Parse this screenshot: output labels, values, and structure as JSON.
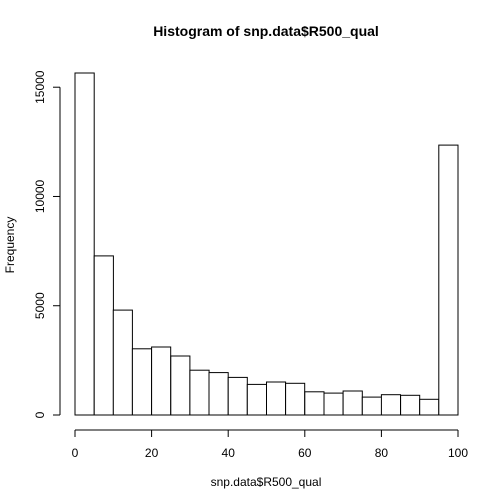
{
  "chart_data": {
    "type": "bar",
    "title": "Histogram of snp.data$R500_qual",
    "xlabel": "snp.data$R500_qual",
    "ylabel": "Frequency",
    "bin_edges": [
      0,
      5,
      10,
      15,
      20,
      25,
      30,
      35,
      40,
      45,
      50,
      55,
      60,
      65,
      70,
      75,
      80,
      85,
      90,
      95,
      100
    ],
    "values": [
      15650,
      7280,
      4800,
      3030,
      3110,
      2700,
      2050,
      1940,
      1720,
      1400,
      1510,
      1450,
      1060,
      1000,
      1100,
      820,
      930,
      900,
      720,
      12350
    ],
    "xlim": [
      0,
      100
    ],
    "ylim": [
      0,
      15650
    ],
    "x_ticks": [
      "0",
      "20",
      "40",
      "60",
      "80",
      "100"
    ],
    "y_ticks": [
      "0",
      "5000",
      "10000",
      "15000"
    ],
    "grid": false,
    "bar_fill": "#ffffff",
    "bar_stroke": "#000000"
  }
}
